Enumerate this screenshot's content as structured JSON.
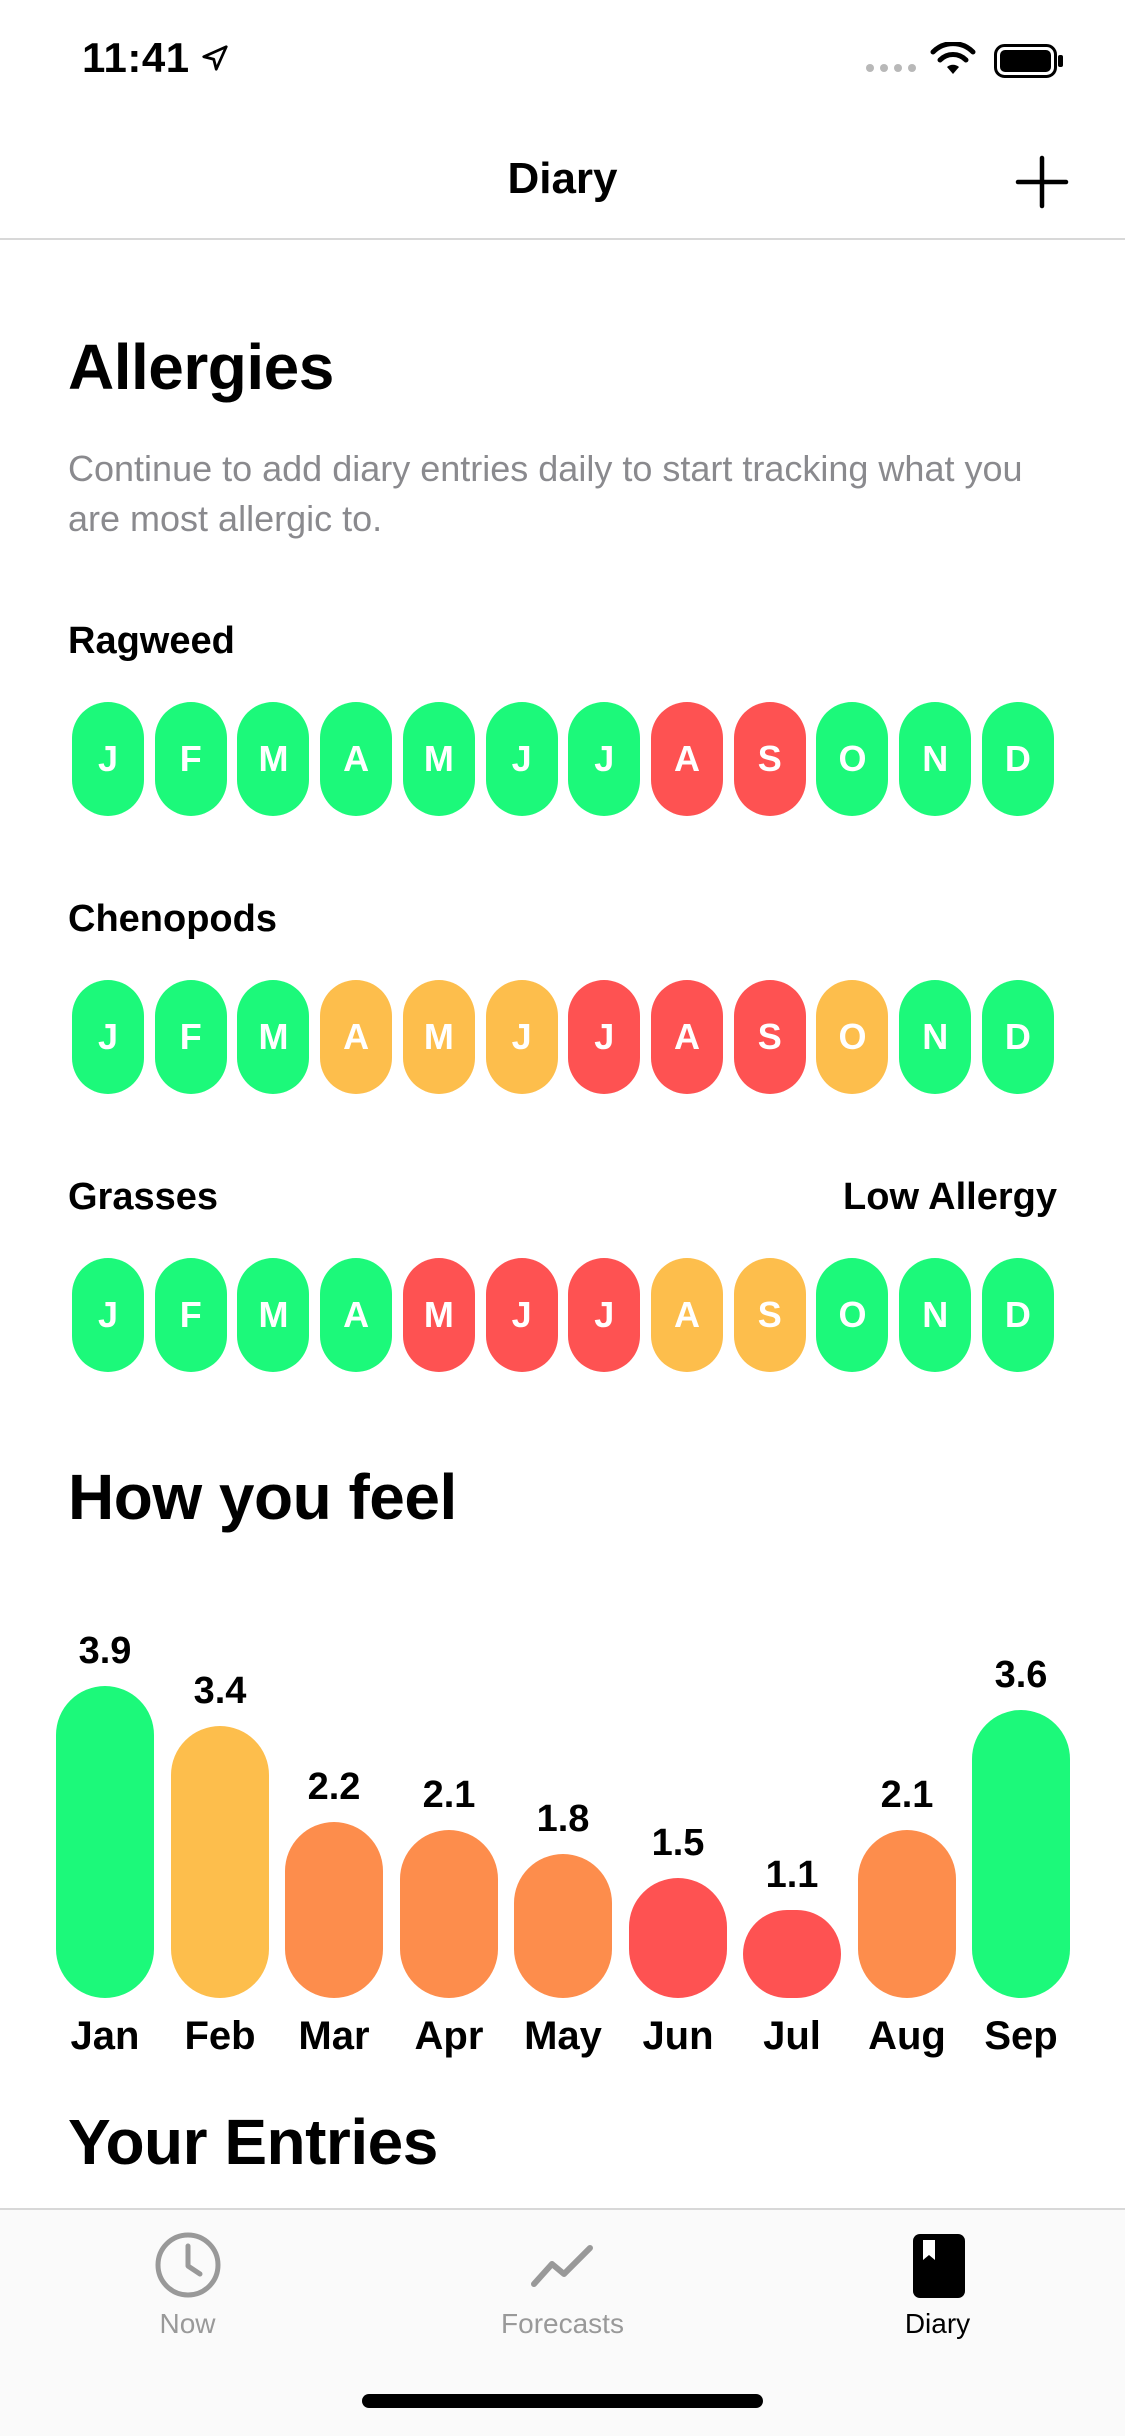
{
  "status_bar": {
    "time": "11:41"
  },
  "nav": {
    "title": "Diary"
  },
  "allergies": {
    "title": "Allergies",
    "subtitle": "Continue to add diary entries daily to start tracking what you are most allergic to.",
    "rows": [
      {
        "name": "Ragweed",
        "side_label": "",
        "months": [
          {
            "letter": "J",
            "level": "green"
          },
          {
            "letter": "F",
            "level": "green"
          },
          {
            "letter": "M",
            "level": "green"
          },
          {
            "letter": "A",
            "level": "green"
          },
          {
            "letter": "M",
            "level": "green"
          },
          {
            "letter": "J",
            "level": "green"
          },
          {
            "letter": "J",
            "level": "green"
          },
          {
            "letter": "A",
            "level": "red"
          },
          {
            "letter": "S",
            "level": "red"
          },
          {
            "letter": "O",
            "level": "green"
          },
          {
            "letter": "N",
            "level": "green"
          },
          {
            "letter": "D",
            "level": "green"
          }
        ]
      },
      {
        "name": "Chenopods",
        "side_label": "",
        "months": [
          {
            "letter": "J",
            "level": "green"
          },
          {
            "letter": "F",
            "level": "green"
          },
          {
            "letter": "M",
            "level": "green"
          },
          {
            "letter": "A",
            "level": "yellow"
          },
          {
            "letter": "M",
            "level": "yellow"
          },
          {
            "letter": "J",
            "level": "yellow"
          },
          {
            "letter": "J",
            "level": "red"
          },
          {
            "letter": "A",
            "level": "red"
          },
          {
            "letter": "S",
            "level": "red"
          },
          {
            "letter": "O",
            "level": "yellow"
          },
          {
            "letter": "N",
            "level": "green"
          },
          {
            "letter": "D",
            "level": "green"
          }
        ]
      },
      {
        "name": "Grasses",
        "side_label": "Low Allergy",
        "months": [
          {
            "letter": "J",
            "level": "green"
          },
          {
            "letter": "F",
            "level": "green"
          },
          {
            "letter": "M",
            "level": "green"
          },
          {
            "letter": "A",
            "level": "green"
          },
          {
            "letter": "M",
            "level": "red"
          },
          {
            "letter": "J",
            "level": "red"
          },
          {
            "letter": "J",
            "level": "red"
          },
          {
            "letter": "A",
            "level": "yellow"
          },
          {
            "letter": "S",
            "level": "yellow"
          },
          {
            "letter": "O",
            "level": "green"
          },
          {
            "letter": "N",
            "level": "green"
          },
          {
            "letter": "D",
            "level": "green"
          }
        ]
      }
    ]
  },
  "feel": {
    "title": "How you feel",
    "chart_data": {
      "type": "bar",
      "categories": [
        "Jan",
        "Feb",
        "Mar",
        "Apr",
        "May",
        "Jun",
        "Jul",
        "Aug",
        "Sep"
      ],
      "values": [
        3.9,
        3.4,
        2.2,
        2.1,
        1.8,
        1.5,
        1.1,
        2.1,
        3.6
      ],
      "value_labels": [
        "3.9",
        "3.4",
        "2.2",
        "2.1",
        "1.8",
        "1.5",
        "1.1",
        "2.1",
        "3.6"
      ],
      "bar_colors": [
        "#1cf97a",
        "#fdbe4c",
        "#fd8d4c",
        "#fd8d4c",
        "#fd8d4c",
        "#fe5252",
        "#fe5252",
        "#fd8d4c",
        "#1cf97a"
      ],
      "title": "",
      "xlabel": "",
      "ylabel": "",
      "ylim": [
        0,
        3.9
      ]
    }
  },
  "entries": {
    "title": "Your Entries"
  },
  "tabs": [
    {
      "label": "Now",
      "icon": "clock-icon",
      "active": false
    },
    {
      "label": "Forecasts",
      "icon": "chart-line-icon",
      "active": false
    },
    {
      "label": "Diary",
      "icon": "book-icon",
      "active": true
    }
  ],
  "colors": {
    "green": "#1cf97a",
    "red": "#fe5252",
    "yellow": "#fdbe4c",
    "orange": "#fd8d4c",
    "inactive_tab": "#999999",
    "active_tab": "#000000"
  }
}
